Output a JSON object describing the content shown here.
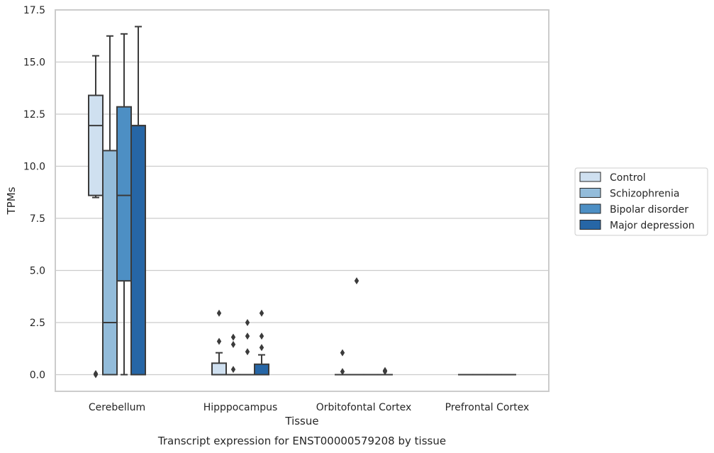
{
  "chart_data": {
    "type": "box",
    "title": "",
    "xlabel": "Tissue",
    "ylabel": "TPMs",
    "caption": "Transcript expression for ENST00000579208 by tissue",
    "categories": [
      "Cerebellum",
      "Hipppocampus",
      "Orbitofontal Cortex",
      "Prefrontal Cortex"
    ],
    "ylim": [
      -0.8,
      17.5
    ],
    "yticks": [
      0.0,
      2.5,
      5.0,
      7.5,
      10.0,
      12.5,
      15.0,
      17.5
    ],
    "ytick_labels": [
      "0.0",
      "2.5",
      "5.0",
      "7.5",
      "10.0",
      "12.5",
      "15.0",
      "17.5"
    ],
    "grid": "horizontal",
    "legend_position": "right",
    "series": [
      {
        "name": "Control",
        "color": "#cfe0f0",
        "boxes": [
          {
            "whislo": 8.5,
            "q1": 8.6,
            "med": 11.95,
            "q3": 13.4,
            "whishi": 15.3,
            "fliers": [
              0.0,
              0.05
            ]
          },
          {
            "whislo": 0.0,
            "q1": 0.0,
            "med": 0.0,
            "q3": 0.55,
            "whishi": 1.05,
            "fliers": [
              1.6,
              2.95
            ]
          },
          {
            "whislo": 0.0,
            "q1": 0.0,
            "med": 0.0,
            "q3": 0.0,
            "whishi": 0.0,
            "fliers": [
              0.15,
              1.05
            ]
          },
          {
            "whislo": 0.0,
            "q1": 0.0,
            "med": 0.0,
            "q3": 0.0,
            "whishi": 0.0,
            "fliers": []
          }
        ]
      },
      {
        "name": "Schizophrenia",
        "color": "#93bcda",
        "boxes": [
          {
            "whislo": 0.0,
            "q1": 0.0,
            "med": 2.5,
            "q3": 10.75,
            "whishi": 16.25,
            "fliers": []
          },
          {
            "whislo": 0.0,
            "q1": 0.0,
            "med": 0.0,
            "q3": 0.0,
            "whishi": 0.0,
            "fliers": [
              0.25,
              1.45,
              1.8
            ]
          },
          {
            "whislo": 0.0,
            "q1": 0.0,
            "med": 0.0,
            "q3": 0.0,
            "whishi": 0.0,
            "fliers": [
              4.5
            ]
          },
          {
            "whislo": 0.0,
            "q1": 0.0,
            "med": 0.0,
            "q3": 0.0,
            "whishi": 0.0,
            "fliers": []
          }
        ]
      },
      {
        "name": "Bipolar disorder",
        "color": "#4d8fc4",
        "boxes": [
          {
            "whislo": 0.0,
            "q1": 4.5,
            "med": 8.6,
            "q3": 12.85,
            "whishi": 16.35,
            "fliers": []
          },
          {
            "whislo": 0.0,
            "q1": 0.0,
            "med": 0.0,
            "q3": 0.0,
            "whishi": 0.0,
            "fliers": [
              1.1,
              1.85,
              2.5
            ]
          },
          {
            "whislo": 0.0,
            "q1": 0.0,
            "med": 0.0,
            "q3": 0.0,
            "whishi": 0.0,
            "fliers": []
          },
          {
            "whislo": 0.0,
            "q1": 0.0,
            "med": 0.0,
            "q3": 0.0,
            "whishi": 0.0,
            "fliers": []
          }
        ]
      },
      {
        "name": "Major depression",
        "color": "#2666a6",
        "boxes": [
          {
            "whislo": 0.0,
            "q1": 0.0,
            "med": 11.95,
            "q3": 11.95,
            "whishi": 16.7,
            "fliers": []
          },
          {
            "whislo": 0.0,
            "q1": 0.0,
            "med": 0.0,
            "q3": 0.5,
            "whishi": 0.95,
            "fliers": [
              1.3,
              1.85,
              2.95
            ]
          },
          {
            "whislo": 0.0,
            "q1": 0.0,
            "med": 0.0,
            "q3": 0.0,
            "whishi": 0.0,
            "fliers": [
              0.15,
              0.2
            ]
          },
          {
            "whislo": 0.0,
            "q1": 0.0,
            "med": 0.0,
            "q3": 0.0,
            "whishi": 0.0,
            "fliers": []
          }
        ]
      }
    ]
  }
}
